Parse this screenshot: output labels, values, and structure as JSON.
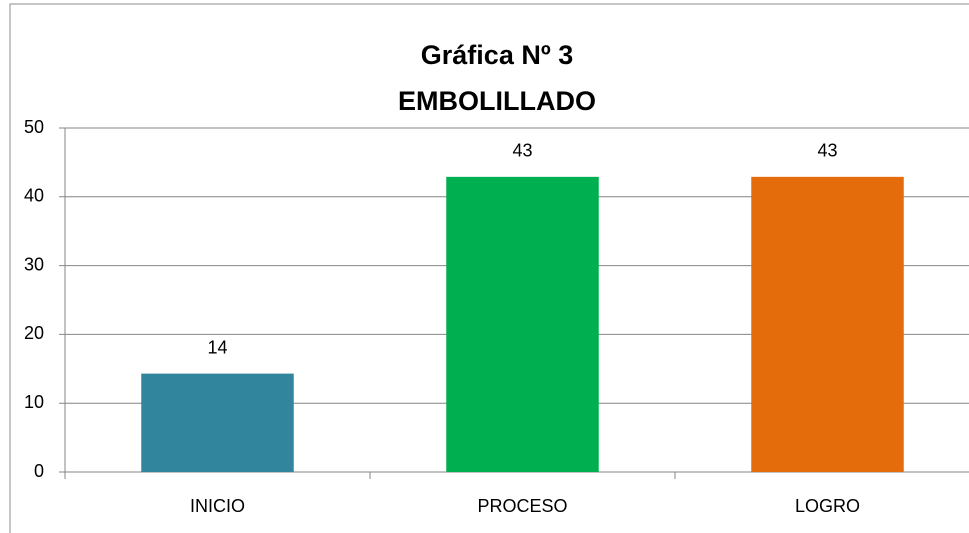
{
  "chart_data": {
    "type": "bar",
    "title": [
      "Gráfica  Nº 3",
      "EMBOLILLADO"
    ],
    "categories": [
      "INICIO",
      "PROCESO",
      "LOGRO"
    ],
    "values": [
      14.3,
      42.9,
      42.9
    ],
    "value_labels": [
      "14",
      "43",
      "43"
    ],
    "colors": [
      "#31859c",
      "#00b050",
      "#e46c0a"
    ],
    "ylim": [
      0,
      50
    ],
    "yticks": [
      0,
      10,
      20,
      30,
      40,
      50
    ],
    "grid": true
  }
}
